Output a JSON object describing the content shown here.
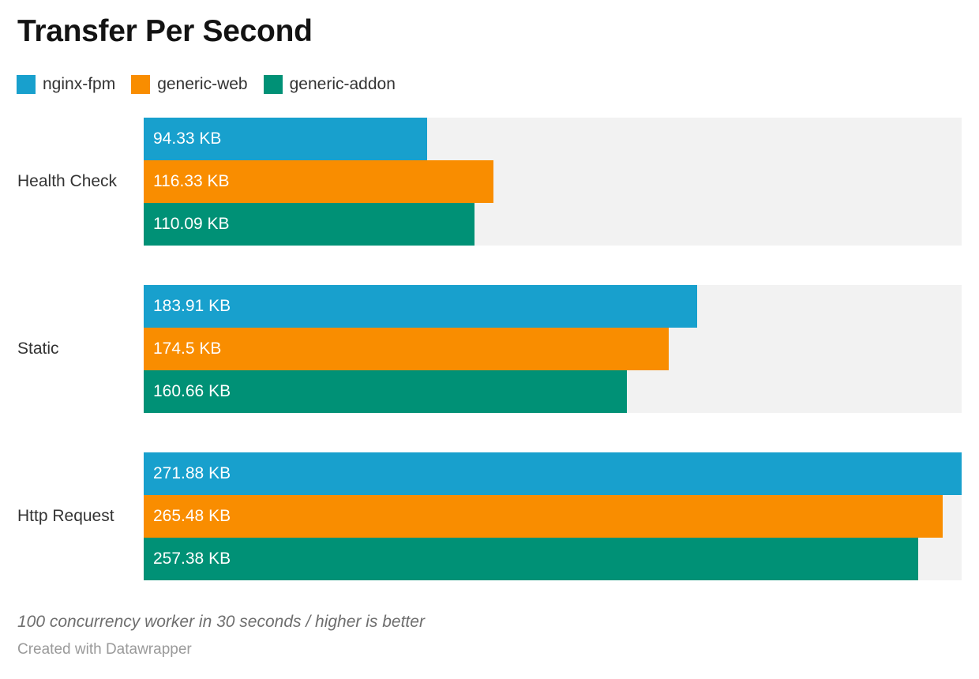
{
  "header": {
    "title": "Transfer Per Second"
  },
  "legend": [
    {
      "name": "nginx-fpm",
      "color": "#18a0cd"
    },
    {
      "name": "generic-web",
      "color": "#f98d00"
    },
    {
      "name": "generic-addon",
      "color": "#009176"
    }
  ],
  "chart_data": {
    "type": "bar",
    "orientation": "horizontal",
    "title": "Transfer Per Second",
    "categories": [
      "Health Check",
      "Static",
      "Http Request"
    ],
    "series": [
      {
        "name": "nginx-fpm",
        "color": "#18a0cd",
        "values": [
          94.33,
          183.91,
          271.88
        ],
        "labels": [
          "94.33 KB",
          "183.91 KB",
          "271.88 KB"
        ]
      },
      {
        "name": "generic-web",
        "color": "#f98d00",
        "values": [
          116.33,
          174.5,
          265.48
        ],
        "labels": [
          "116.33 KB",
          "174.5 KB",
          "265.48 KB"
        ]
      },
      {
        "name": "generic-addon",
        "color": "#009176",
        "values": [
          110.09,
          160.66,
          257.38
        ],
        "labels": [
          "110.09 KB",
          "160.66 KB",
          "257.38 KB"
        ]
      }
    ],
    "unit": "KB",
    "xlim": [
      0,
      271.88
    ],
    "value_label_position": "inside-left",
    "track_color": "#f2f2f2",
    "grid": false,
    "legend_position": "top-left"
  },
  "footer": {
    "note": "100 concurrency worker in 30 seconds / higher is better",
    "attribution": "Created with Datawrapper"
  }
}
